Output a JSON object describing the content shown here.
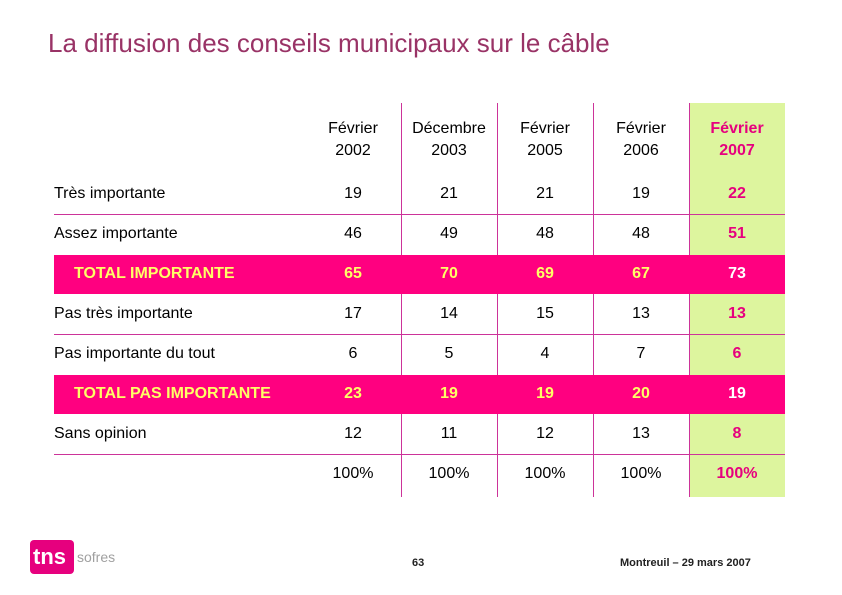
{
  "title": "La diffusion des conseils municipaux sur le câble",
  "columns": [
    {
      "month": "Février",
      "year": "2002"
    },
    {
      "month": "Décembre",
      "year": "2003"
    },
    {
      "month": "Février",
      "year": "2005"
    },
    {
      "month": "Février",
      "year": "2006"
    },
    {
      "month": "Février",
      "year": "2007"
    }
  ],
  "rows": [
    {
      "label": "Très importante",
      "values": [
        "19",
        "21",
        "21",
        "19",
        "22"
      ],
      "total": false
    },
    {
      "label": "Assez importante",
      "values": [
        "46",
        "49",
        "48",
        "48",
        "51"
      ],
      "total": false
    },
    {
      "label": "TOTAL IMPORTANTE",
      "values": [
        "65",
        "70",
        "69",
        "67",
        "73"
      ],
      "total": true
    },
    {
      "label": "Pas très importante",
      "values": [
        "17",
        "14",
        "15",
        "13",
        "13"
      ],
      "total": false
    },
    {
      "label": "Pas importante du tout",
      "values": [
        "6",
        "5",
        "4",
        "7",
        "6"
      ],
      "total": false
    },
    {
      "label": "TOTAL PAS IMPORTANTE",
      "values": [
        "23",
        "19",
        "19",
        "20",
        "19"
      ],
      "total": true
    },
    {
      "label": "Sans opinion",
      "values": [
        "12",
        "11",
        "12",
        "13",
        "8"
      ],
      "total": false
    },
    {
      "label": "",
      "values": [
        "100%",
        "100%",
        "100%",
        "100%",
        "100%"
      ],
      "total": false
    }
  ],
  "footer": {
    "page": "63",
    "date": "Montreuil – 29 mars 2007"
  },
  "logo": {
    "brand": "tns",
    "sub": "sofres"
  },
  "colors": {
    "title": "#993366",
    "accent": "#ff0080",
    "highlight": "#ddf59e",
    "total_text": "#ffff66"
  }
}
